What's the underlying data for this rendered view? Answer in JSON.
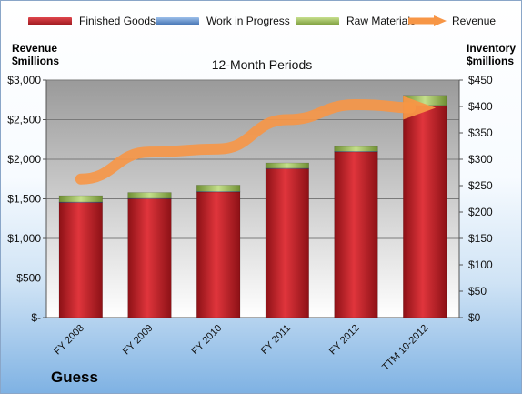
{
  "company": "Guess",
  "chart_data": {
    "type": "bar",
    "subtitle": "12-Month Periods",
    "y_left_label": [
      "Revenue",
      "$millions"
    ],
    "y_right_label": [
      "Inventory",
      "$millions"
    ],
    "categories": [
      "FY 2008",
      "FY 2009",
      "FY 2010",
      "FY 2011",
      "FY 2012",
      "TTM 10-2012"
    ],
    "y_left_ticks": [
      "$-",
      "$500",
      "$1,000",
      "$1,500",
      "$2,000",
      "$2,500",
      "$3,000"
    ],
    "y_right_ticks": [
      "$0",
      "$50",
      "$100",
      "$150",
      "$200",
      "$250",
      "$300",
      "$350",
      "$400",
      "$450"
    ],
    "y_left_range": [
      0,
      3000
    ],
    "y_right_range": [
      0,
      450
    ],
    "stacked": true,
    "series": [
      {
        "name": "Finished Goods",
        "color": "#c0232a",
        "axis": "right",
        "values": [
          218,
          225,
          238,
          282,
          314,
          401
        ]
      },
      {
        "name": "Work in Progress",
        "color": "#4f81bd",
        "axis": "right",
        "values": [
          1,
          1,
          1,
          1,
          1,
          1
        ]
      },
      {
        "name": "Raw Materials",
        "color": "#9bbb59",
        "axis": "right",
        "values": [
          12,
          11,
          12,
          10,
          9,
          19
        ]
      },
      {
        "name": "Revenue",
        "color": "#f79646",
        "axis": "left",
        "kind": "line",
        "values": [
          1750,
          2090,
          2130,
          2500,
          2690,
          2650
        ]
      }
    ],
    "grid": true,
    "legend_position": "top"
  }
}
